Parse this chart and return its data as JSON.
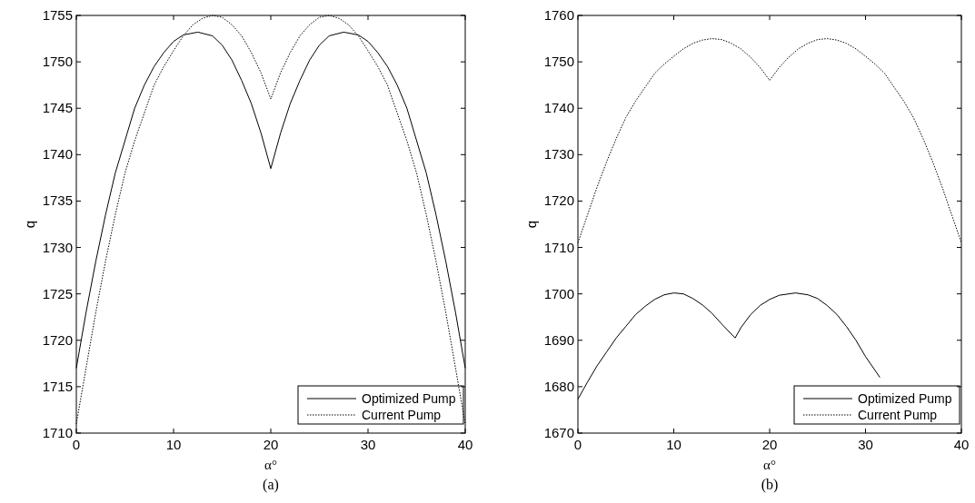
{
  "chart_data": [
    {
      "type": "line",
      "xlabel": "α°",
      "ylabel": "q",
      "xlim": [
        0,
        40
      ],
      "ylim": [
        1710,
        1755
      ],
      "xticks": [
        0,
        10,
        20,
        30,
        40
      ],
      "yticks": [
        1710,
        1715,
        1720,
        1725,
        1730,
        1735,
        1740,
        1745,
        1750,
        1755
      ],
      "grid": false,
      "legend": "bottom right",
      "annotations": [
        "(a)"
      ],
      "series": [
        {
          "name": "Optimized Pump",
          "color": "#000000",
          "line_style": "solid",
          "x": [
            0,
            1,
            2,
            3,
            4,
            5,
            6,
            7,
            8,
            9,
            10,
            11,
            12.5,
            14,
            15,
            16,
            17,
            18,
            19,
            20,
            21,
            22,
            23,
            24,
            25,
            26,
            27.5,
            29,
            30,
            31,
            32,
            33,
            34,
            35,
            36,
            37,
            38,
            39,
            40
          ],
          "values": [
            1717,
            1723,
            1728.5,
            1733.5,
            1738,
            1741.5,
            1745,
            1747.5,
            1749.5,
            1751,
            1752.2,
            1752.9,
            1753.2,
            1752.8,
            1751.8,
            1750.2,
            1748,
            1745.5,
            1742.3,
            1738.5,
            1742.3,
            1745.5,
            1748,
            1750.2,
            1751.8,
            1752.8,
            1753.2,
            1752.9,
            1752.2,
            1751,
            1749.5,
            1747.5,
            1745,
            1741.5,
            1738,
            1733.5,
            1728.5,
            1723,
            1717
          ]
        },
        {
          "name": "Current Pump",
          "color": "#000000",
          "line_style": "dotted",
          "x": [
            0,
            1,
            2,
            3,
            4,
            5,
            6,
            7,
            8,
            9,
            10,
            11,
            12,
            13,
            14,
            15,
            16,
            17,
            18,
            19,
            20,
            21,
            22,
            23,
            24,
            25,
            26,
            27,
            28,
            29,
            30,
            31,
            32,
            33,
            34,
            35,
            36,
            37,
            38,
            39,
            40
          ],
          "values": [
            1711,
            1717,
            1723,
            1728.5,
            1733.5,
            1738,
            1741.5,
            1744.5,
            1747.5,
            1749.5,
            1751.2,
            1752.8,
            1754,
            1754.7,
            1755,
            1754.8,
            1754,
            1752.8,
            1751,
            1748.8,
            1746,
            1748.8,
            1751,
            1752.8,
            1754,
            1754.8,
            1755,
            1754.7,
            1754,
            1752.8,
            1751.2,
            1749.5,
            1747.5,
            1744.5,
            1741.5,
            1738,
            1733.5,
            1728.5,
            1723,
            1717,
            1711
          ]
        }
      ]
    },
    {
      "type": "line",
      "xlabel": "α°",
      "ylabel": "q",
      "xlim": [
        0,
        40
      ],
      "ylim": [
        1670,
        1760
      ],
      "xticks": [
        0,
        10,
        20,
        30,
        40
      ],
      "yticks": [
        1670,
        1680,
        1690,
        1700,
        1710,
        1720,
        1730,
        1740,
        1750,
        1760
      ],
      "grid": false,
      "legend": "bottom right",
      "annotations": [
        "(b)"
      ],
      "series": [
        {
          "name": "Optimized Pump",
          "color": "#000000",
          "line_style": "solid",
          "x": [
            0,
            1,
            2,
            3,
            4,
            5,
            6,
            7,
            8,
            9,
            10,
            11,
            12,
            13,
            14,
            15,
            16.4,
            17,
            18,
            19,
            20,
            21,
            22.7,
            24,
            25,
            26,
            27,
            28,
            29,
            30,
            31.5
          ],
          "values": [
            1677.3,
            1681,
            1684.5,
            1687.5,
            1690.5,
            1693,
            1695.5,
            1697.3,
            1698.8,
            1699.8,
            1700.2,
            1700,
            1699,
            1697.6,
            1695.8,
            1693.5,
            1690.5,
            1692.7,
            1695.5,
            1697.5,
            1698.8,
            1699.7,
            1700.2,
            1699.8,
            1699,
            1697.5,
            1695.6,
            1693,
            1690,
            1686.5,
            1682
          ]
        },
        {
          "name": "Current Pump",
          "color": "#000000",
          "line_style": "dotted",
          "x": [
            0,
            1,
            2,
            3,
            4,
            5,
            6,
            7,
            8,
            9,
            10,
            11,
            12,
            13,
            14,
            15,
            16,
            17,
            18,
            19,
            20,
            21,
            22,
            23,
            24,
            25,
            26,
            27,
            28,
            29,
            30,
            31,
            32,
            33,
            34,
            35,
            36,
            37,
            38,
            39,
            40
          ],
          "values": [
            1711,
            1717,
            1723,
            1728.5,
            1733.5,
            1738,
            1741.5,
            1744.5,
            1747.5,
            1749.5,
            1751.2,
            1752.8,
            1754,
            1754.7,
            1755,
            1754.8,
            1754,
            1752.8,
            1751,
            1748.8,
            1746,
            1748.8,
            1751,
            1752.8,
            1754,
            1754.8,
            1755,
            1754.7,
            1754,
            1752.8,
            1751.2,
            1749.5,
            1747.5,
            1744.5,
            1741.5,
            1738,
            1733.5,
            1728.5,
            1723,
            1717,
            1711
          ]
        }
      ]
    }
  ]
}
